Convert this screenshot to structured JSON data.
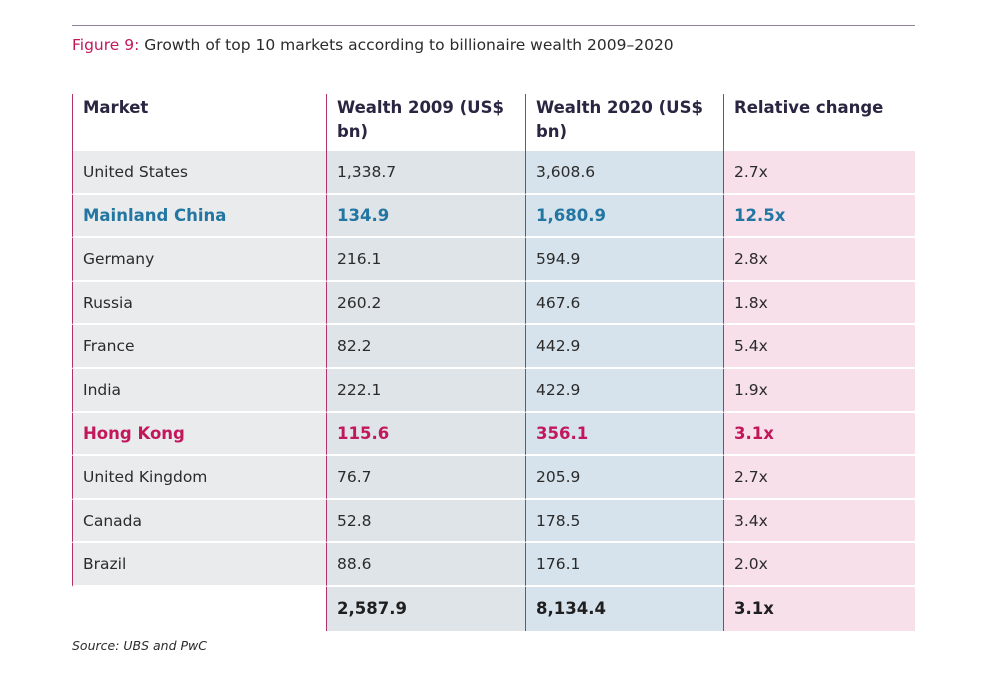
{
  "figure": {
    "number_label": "Figure 9:",
    "title": "Growth of top 10 markets according to billionaire wealth 2009–2020"
  },
  "table": {
    "headers": {
      "market": "Market",
      "wealth_2009": "Wealth 2009 (US$ bn)",
      "wealth_2020": "Wealth 2020 (US$ bn)",
      "relative_change": "Relative change"
    },
    "rows": [
      {
        "market": "United States",
        "w2009": "1,338.7",
        "w2020": "3,608.6",
        "change": "2.7x"
      },
      {
        "market": "Mainland China",
        "w2009": "134.9",
        "w2020": "1,680.9",
        "change": "12.5x"
      },
      {
        "market": "Germany",
        "w2009": "216.1",
        "w2020": "594.9",
        "change": "2.8x"
      },
      {
        "market": "Russia",
        "w2009": "260.2",
        "w2020": "467.6",
        "change": "1.8x"
      },
      {
        "market": "France",
        "w2009": "82.2",
        "w2020": "442.9",
        "change": "5.4x"
      },
      {
        "market": "India",
        "w2009": "222.1",
        "w2020": "422.9",
        "change": "1.9x"
      },
      {
        "market": "Hong Kong",
        "w2009": "115.6",
        "w2020": "356.1",
        "change": "3.1x"
      },
      {
        "market": "United Kingdom",
        "w2009": "76.7",
        "w2020": "205.9",
        "change": "2.7x"
      },
      {
        "market": "Canada",
        "w2009": "52.8",
        "w2020": "178.5",
        "change": "3.4x"
      },
      {
        "market": "Brazil",
        "w2009": "88.6",
        "w2020": "176.1",
        "change": "2.0x"
      }
    ],
    "total": {
      "w2009": "2,587.9",
      "w2020": "8,134.4",
      "change": "3.1x"
    }
  },
  "source": "Source: UBS and PwC",
  "colors": {
    "accent_magenta": "#c2175b",
    "accent_blue": "#2276a1"
  }
}
